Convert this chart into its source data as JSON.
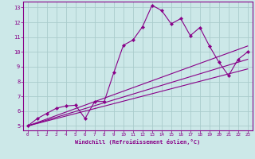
{
  "xlabel": "Windchill (Refroidissement éolien,°C)",
  "xlim": [
    -0.5,
    23.5
  ],
  "ylim": [
    4.7,
    13.4
  ],
  "xticks": [
    0,
    1,
    2,
    3,
    4,
    5,
    6,
    7,
    8,
    9,
    10,
    11,
    12,
    13,
    14,
    15,
    16,
    17,
    18,
    19,
    20,
    21,
    22,
    23
  ],
  "yticks": [
    5,
    6,
    7,
    8,
    9,
    10,
    11,
    12,
    13
  ],
  "bg_color": "#cce8e8",
  "line_color": "#880088",
  "grid_color": "#aacccc",
  "data_x": [
    0,
    1,
    2,
    3,
    4,
    5,
    6,
    7,
    8,
    9,
    10,
    11,
    12,
    13,
    14,
    15,
    16,
    17,
    18,
    19,
    20,
    21,
    22,
    23
  ],
  "data_y": [
    5.0,
    5.5,
    5.85,
    6.2,
    6.35,
    6.4,
    5.5,
    6.65,
    6.65,
    8.6,
    10.45,
    10.8,
    11.7,
    13.15,
    12.8,
    11.9,
    12.25,
    11.1,
    11.65,
    10.4,
    9.3,
    8.4,
    9.5,
    10.0
  ],
  "line1_x": [
    0,
    23
  ],
  "line1_y": [
    5.0,
    10.4
  ],
  "line2_x": [
    0,
    23
  ],
  "line2_y": [
    5.0,
    9.5
  ],
  "line3_x": [
    0,
    23
  ],
  "line3_y": [
    5.0,
    8.85
  ]
}
